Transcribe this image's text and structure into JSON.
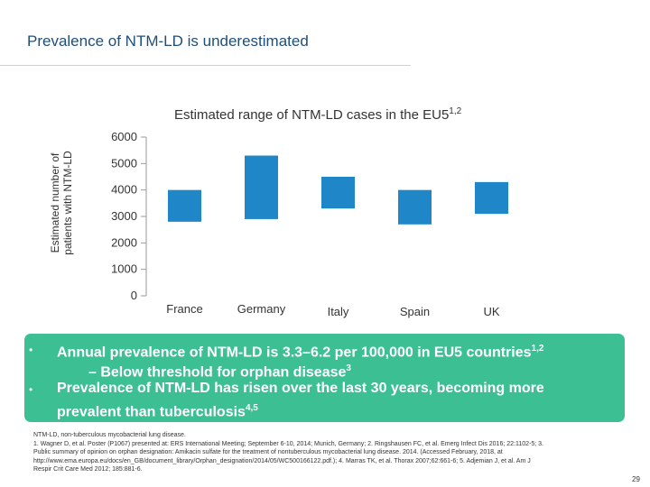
{
  "slide": {
    "title": "Prevalence of NTM-LD is underestimated",
    "page_number": "29"
  },
  "chart_data": {
    "type": "bar",
    "title": "Estimated range of NTM-LD cases in the EU5",
    "title_sup": "1,2",
    "ylabel_line1": "Estimated number of",
    "ylabel_line2": "patients with NTM-LD",
    "xlabel": "",
    "categories": [
      "France",
      "Germany",
      "Italy",
      "Spain",
      "UK"
    ],
    "ranges": [
      {
        "low": 2800,
        "high": 4000
      },
      {
        "low": 2900,
        "high": 5300
      },
      {
        "low": 3300,
        "high": 4500
      },
      {
        "low": 2700,
        "high": 4000
      },
      {
        "low": 3100,
        "high": 4300
      }
    ],
    "yticks": [
      "0",
      "1000",
      "2000",
      "3000",
      "4000",
      "5000",
      "6000"
    ],
    "ylim": [
      0,
      6000
    ],
    "bar_color": "#1f86c7"
  },
  "summary": {
    "bullet1": "Annual prevalence of NTM-LD is 3.3–6.2 per 100,000 in EU5 countries",
    "bullet1_sup": "1,2",
    "sub1": "– Below threshold for orphan disease",
    "sub1_sup": "3",
    "bullet2_line1": "Prevalence of NTM-LD has risen over the last 30 years, becoming more",
    "bullet2_line2": "prevalent than tuberculosis",
    "bullet2_sup": "4,5",
    "bullet_symbol": "•"
  },
  "references": {
    "line1": "NTM-LD, non-tuberculous mycobacterial lung disease.",
    "line2": "1. Wagner D, et al. Poster (P1067) presented at: ERS International Meeting; September 6-10, 2014; Munich, Germany; 2. Ringshausen FC, et al. Emerg Infect Dis 2016; 22:1102-5; 3.",
    "line3": "Public summary of opinion on orphan designation: Amikacin sulfate for the treatment of nontuberculous mycobacterial lung disease. 2014. (Accessed February, 2018, at",
    "line4": "http://www.ema.europa.eu/docs/en_GB/document_library/Orphan_designation/2014/05/WC500166122.pdf.); 4. Marras TK, et al. Thorax 2007;62:661-6; 5.  Adjemian J, et al. Am J",
    "line5": "Respir Crit Care Med 2012; 185:881-6."
  }
}
